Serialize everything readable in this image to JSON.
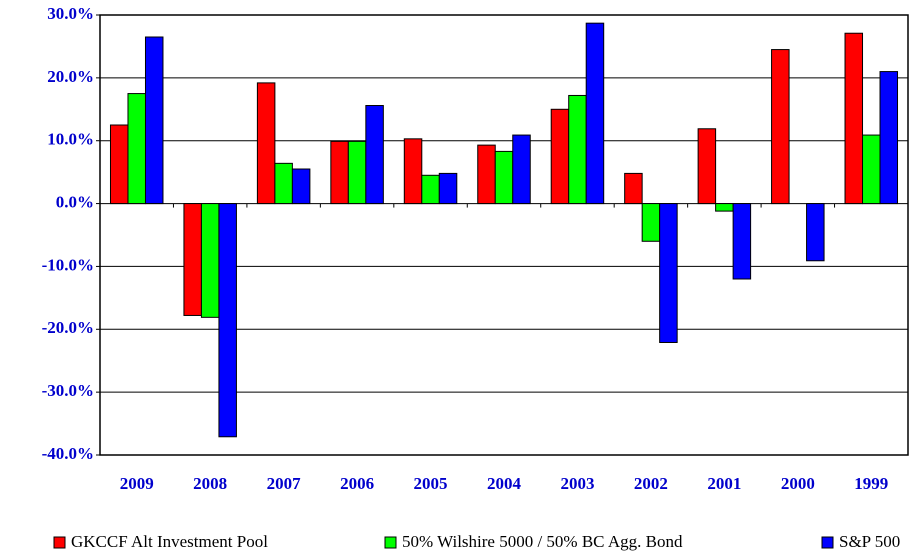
{
  "chart_data": {
    "type": "bar",
    "categories": [
      "2009",
      "2008",
      "2007",
      "2006",
      "2005",
      "2004",
      "2003",
      "2002",
      "2001",
      "2000",
      "1999"
    ],
    "series": [
      {
        "name": "GKCCF Alt Investment Pool",
        "color": "#ff0000",
        "values": [
          12.5,
          -17.8,
          19.2,
          9.9,
          10.3,
          9.3,
          15.0,
          4.8,
          11.9,
          24.5,
          27.1
        ]
      },
      {
        "name": "50% Wilshire 5000 / 50% BC Agg. Bond",
        "color": "#00ff00",
        "values": [
          17.5,
          -18.1,
          6.4,
          9.9,
          4.5,
          8.3,
          17.2,
          -6.0,
          -1.2,
          null,
          10.9
        ]
      },
      {
        "name": "S&P 500",
        "color": "#0000ff",
        "values": [
          26.5,
          -37.1,
          5.5,
          15.6,
          4.8,
          10.9,
          28.7,
          -22.1,
          -12.0,
          -9.1,
          21.0
        ]
      }
    ],
    "ylim": [
      -40,
      30
    ],
    "yticks": [
      {
        "value": -40,
        "label": "-40.0%"
      },
      {
        "value": -30,
        "label": "-30.0%"
      },
      {
        "value": -20,
        "label": "-20.0%"
      },
      {
        "value": -10,
        "label": "-10.0%"
      },
      {
        "value": 0,
        "label": "0.0%"
      },
      {
        "value": 10,
        "label": "10.0%"
      },
      {
        "value": 20,
        "label": "20.0%"
      },
      {
        "value": 30,
        "label": "30.0%"
      }
    ],
    "grid": true
  }
}
